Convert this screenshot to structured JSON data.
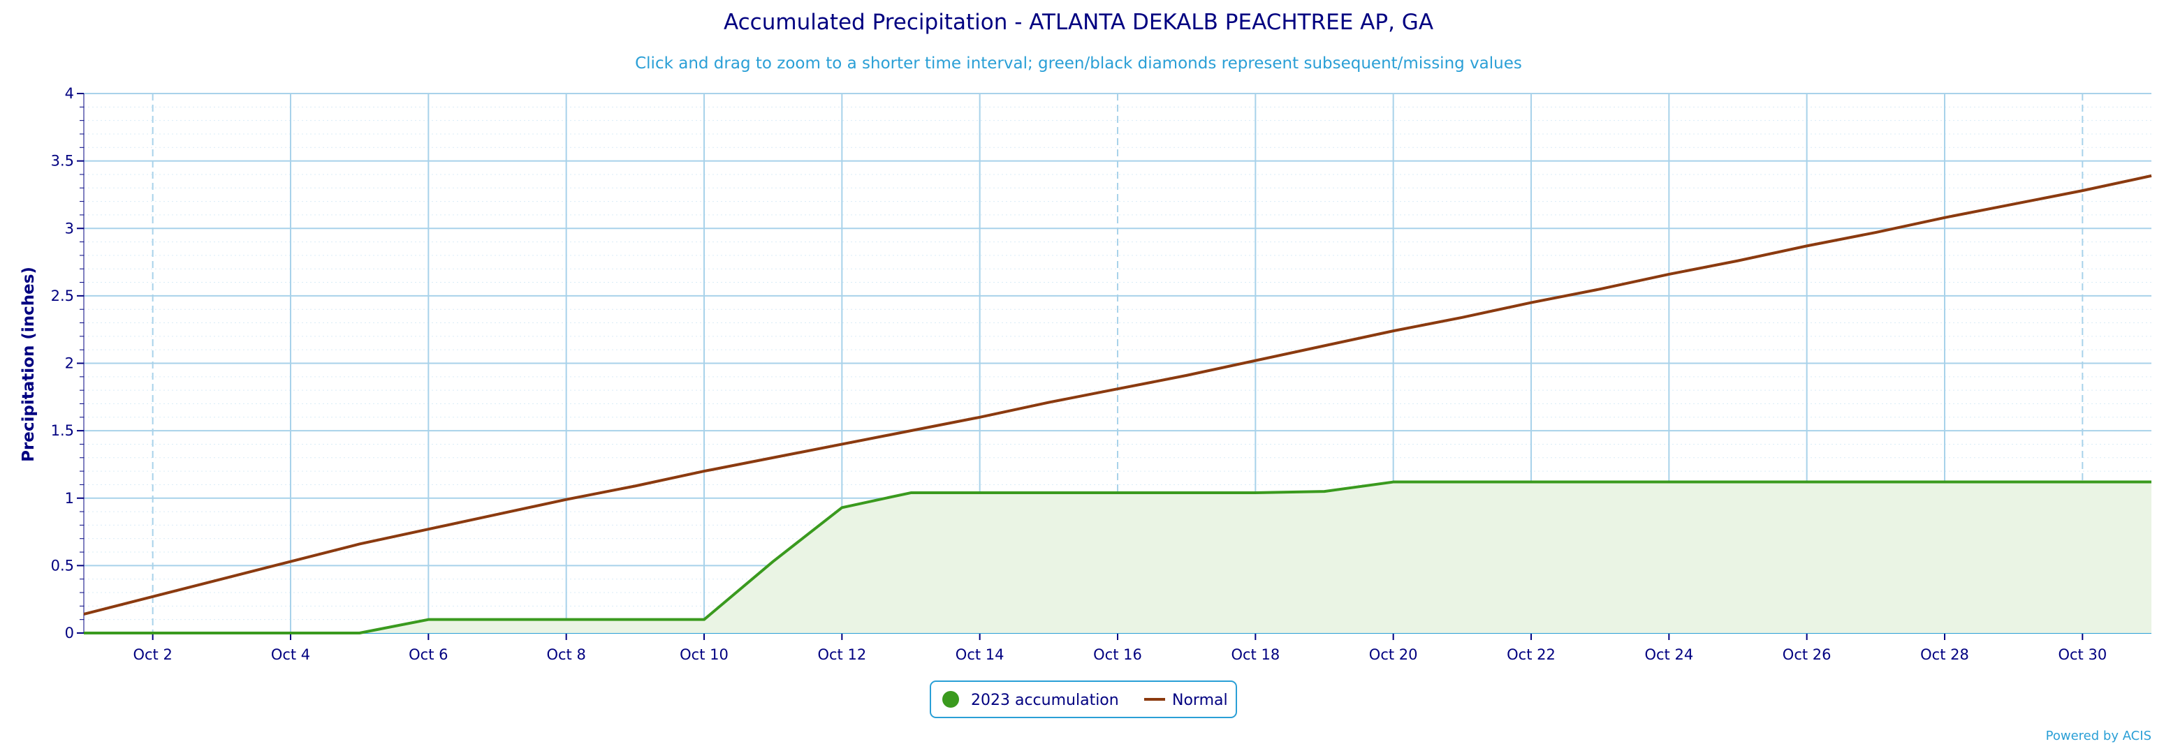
{
  "chart_data": {
    "type": "line",
    "title": "Accumulated Precipitation - ATLANTA DEKALB PEACHTREE AP, GA",
    "subtitle": "Click and drag to zoom to a shorter time interval; green/black diamonds represent subsequent/missing values",
    "xlabel": "",
    "ylabel": "Precipitation (inches)",
    "ylim": [
      0,
      4
    ],
    "yticks": [
      "0",
      "0.5",
      "1",
      "1.5",
      "2",
      "2.5",
      "3",
      "3.5",
      "4"
    ],
    "xlim": [
      "Oct 1",
      "Oct 31"
    ],
    "xticks": [
      "Oct 2",
      "Oct 4",
      "Oct 6",
      "Oct 8",
      "Oct 10",
      "Oct 12",
      "Oct 14",
      "Oct 16",
      "Oct 18",
      "Oct 20",
      "Oct 22",
      "Oct 24",
      "Oct 26",
      "Oct 28",
      "Oct 30"
    ],
    "grid": true,
    "legend_position": "bottom-center",
    "series": [
      {
        "name": "2023 accumulation",
        "color": "#3a9a1e",
        "fill": "#eaf4e4",
        "x": [
          "Oct 1",
          "Oct 2",
          "Oct 3",
          "Oct 4",
          "Oct 5",
          "Oct 6",
          "Oct 7",
          "Oct 8",
          "Oct 9",
          "Oct 10",
          "Oct 11",
          "Oct 12",
          "Oct 13",
          "Oct 14",
          "Oct 15",
          "Oct 16",
          "Oct 17",
          "Oct 18",
          "Oct 19",
          "Oct 20",
          "Oct 21",
          "Oct 22",
          "Oct 23",
          "Oct 24",
          "Oct 25",
          "Oct 26",
          "Oct 27",
          "Oct 28",
          "Oct 29",
          "Oct 30",
          "Oct 31"
        ],
        "values": [
          0,
          0,
          0,
          0,
          0,
          0.1,
          0.1,
          0.1,
          0.1,
          0.1,
          0.53,
          0.93,
          1.04,
          1.04,
          1.04,
          1.04,
          1.04,
          1.04,
          1.05,
          1.12,
          1.12,
          1.12,
          1.12,
          1.12,
          1.12,
          1.12,
          1.12,
          1.12,
          1.12,
          1.12,
          1.12
        ]
      },
      {
        "name": "Normal",
        "color": "#8b3a0f",
        "x": [
          "Oct 1",
          "Oct 2",
          "Oct 3",
          "Oct 4",
          "Oct 5",
          "Oct 6",
          "Oct 7",
          "Oct 8",
          "Oct 9",
          "Oct 10",
          "Oct 11",
          "Oct 12",
          "Oct 13",
          "Oct 14",
          "Oct 15",
          "Oct 16",
          "Oct 17",
          "Oct 18",
          "Oct 19",
          "Oct 20",
          "Oct 21",
          "Oct 22",
          "Oct 23",
          "Oct 24",
          "Oct 25",
          "Oct 26",
          "Oct 27",
          "Oct 28",
          "Oct 29",
          "Oct 30",
          "Oct 31"
        ],
        "values": [
          0.14,
          0.27,
          0.4,
          0.53,
          0.66,
          0.77,
          0.88,
          0.99,
          1.09,
          1.2,
          1.3,
          1.4,
          1.5,
          1.6,
          1.71,
          1.81,
          1.91,
          2.02,
          2.13,
          2.24,
          2.34,
          2.45,
          2.55,
          2.66,
          2.76,
          2.87,
          2.97,
          3.08,
          3.18,
          3.28,
          3.39
        ]
      }
    ]
  },
  "credit": "Powered by ACIS"
}
